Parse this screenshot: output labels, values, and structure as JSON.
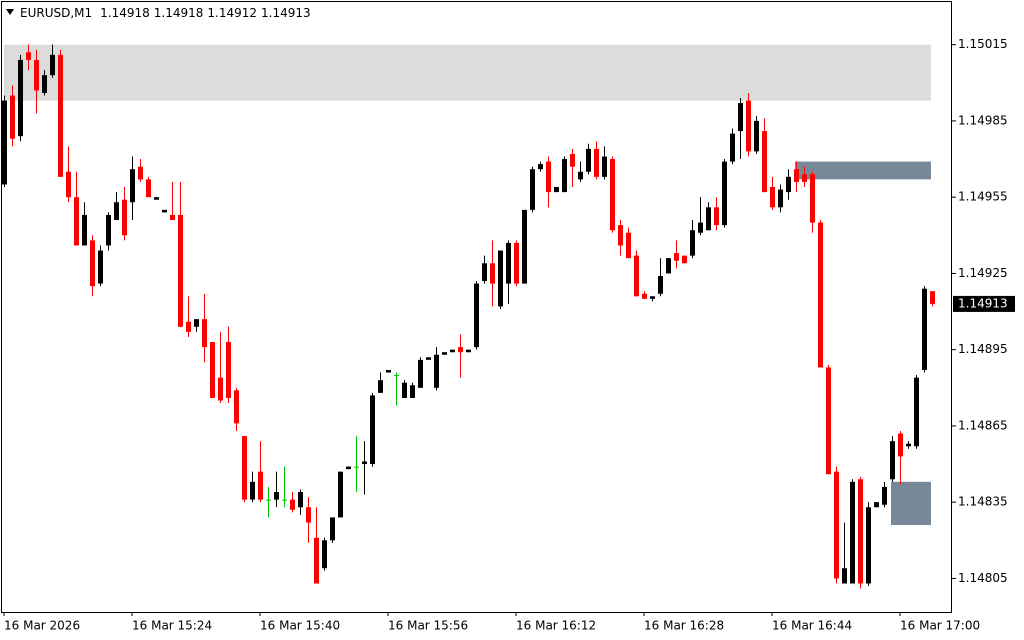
{
  "chart_data": {
    "type": "candlestick",
    "title": "EURUSD,M1",
    "categories": [
      "16 Mar 2026",
      null,
      null,
      null,
      null,
      null,
      null,
      null,
      null,
      null,
      null,
      null,
      null,
      null,
      null,
      null,
      "16 Mar 15:24",
      null,
      null,
      null,
      null,
      null,
      null,
      null,
      null,
      null,
      null,
      null,
      null,
      null,
      null,
      null,
      "16 Mar 15:40",
      null,
      null,
      null,
      null,
      null,
      null,
      null,
      null,
      null,
      null,
      null,
      null,
      null,
      null,
      null,
      "16 Mar 15:56",
      null,
      null,
      null,
      null,
      null,
      null,
      null,
      null,
      null,
      null,
      null,
      null,
      null,
      null,
      null,
      "16 Mar 16:12",
      null,
      null,
      null,
      null,
      null,
      null,
      null,
      null,
      null,
      null,
      null,
      null,
      null,
      null,
      null,
      "16 Mar 16:28",
      null,
      null,
      null,
      null,
      null,
      null,
      null,
      null,
      null,
      null,
      null,
      null,
      null,
      null,
      null,
      "16 Mar 16:44",
      null,
      null,
      null,
      null,
      null,
      null,
      null,
      null,
      null,
      null,
      null,
      null,
      null,
      null,
      null,
      "16 Mar 17:00",
      null,
      null,
      null,
      null
    ],
    "open": [
      1.1496,
      1.14995,
      1.14979,
      1.15012,
      1.15009,
      1.14996,
      1.15003,
      1.15011,
      1.14965,
      1.14955,
      1.14936,
      1.14938,
      1.14921,
      1.14936,
      1.14946,
      1.14954,
      1.14953,
      1.14967,
      1.14962,
      1.14954,
      1.14949,
      1.14948,
      1.14948,
      1.14906,
      1.14904,
      1.14907,
      1.14898,
      1.14884,
      1.14898,
      1.14879,
      1.14861,
      1.14836,
      1.14847,
      1.14836,
      1.14836,
      1.14836,
      1.14836,
      1.14833,
      1.14833,
      1.14821,
      1.14809,
      1.1482,
      1.14829,
      1.14848,
      1.14849,
      1.1485,
      1.1485,
      1.14878,
      1.14886,
      1.14885,
      1.14876,
      1.14876,
      1.1488,
      1.14891,
      1.1488,
      1.14893,
      1.14894,
      1.14896,
      1.14894,
      1.14896,
      1.14922,
      1.14929,
      1.14912,
      1.14921,
      1.14937,
      1.14921,
      1.1495,
      1.14966,
      1.14969,
      1.14957,
      1.14957,
      1.14972,
      1.14962,
      1.14965,
      1.14974,
      1.14963,
      1.1497,
      1.14944,
      1.14941,
      1.14932,
      1.14917,
      1.14915,
      1.14917,
      1.14925,
      1.14933,
      1.14932,
      1.14932,
      1.14941,
      1.14942,
      1.14951,
      1.14944,
      1.14969,
      1.14981,
      1.14993,
      1.14973,
      1.14981,
      1.14959,
      1.14951,
      1.14957,
      1.14966,
      1.14964,
      1.14964,
      1.14945,
      1.14888,
      1.14847,
      1.14803,
      1.14803,
      1.14844,
      1.14803,
      1.14833,
      1.14834,
      1.14844,
      1.14862,
      1.14857,
      1.14857,
      1.14887,
      1.14918
    ],
    "high": [
      1.14995,
      1.14999,
      1.15011,
      1.15015,
      1.15013,
      1.15005,
      1.15015,
      1.15013,
      1.14975,
      1.14965,
      1.14953,
      1.1494,
      1.14936,
      1.14949,
      1.14957,
      1.14959,
      1.14971,
      1.1497,
      1.14963,
      1.14955,
      1.1495,
      1.14961,
      1.14961,
      1.14916,
      1.14907,
      1.14917,
      1.14898,
      1.14902,
      1.14904,
      1.1488,
      1.14861,
      1.14847,
      1.14859,
      1.14841,
      1.14847,
      1.14849,
      1.14839,
      1.1484,
      1.14837,
      1.14833,
      1.14821,
      1.14829,
      1.14847,
      1.14849,
      1.14861,
      1.14859,
      1.14878,
      1.14886,
      1.14887,
      1.14886,
      1.14883,
      1.14882,
      1.14892,
      1.14892,
      1.14896,
      1.14894,
      1.14895,
      1.14901,
      1.14895,
      1.14922,
      1.14932,
      1.14938,
      1.14934,
      1.14938,
      1.14938,
      1.1495,
      1.14967,
      1.14969,
      1.14971,
      1.14959,
      1.14971,
      1.14974,
      1.14969,
      1.14976,
      1.14977,
      1.14975,
      1.14971,
      1.14946,
      1.14943,
      1.14934,
      1.14918,
      1.14916,
      1.14931,
      1.14931,
      1.14938,
      1.14932,
      1.14946,
      1.14955,
      1.14953,
      1.14955,
      1.1497,
      1.14982,
      1.14994,
      1.14996,
      1.14987,
      1.14986,
      1.14963,
      1.1496,
      1.14966,
      1.14969,
      1.14967,
      1.14965,
      1.14946,
      1.14889,
      1.14849,
      1.14827,
      1.14844,
      1.14845,
      1.14835,
      1.14835,
      1.14843,
      1.14861,
      1.14863,
      1.14859,
      1.14885,
      1.1492,
      1.14918
    ],
    "low": [
      1.14959,
      1.14975,
      1.14977,
      1.15005,
      1.14988,
      1.14995,
      1.15002,
      1.14963,
      1.14953,
      1.14936,
      1.14936,
      1.14916,
      1.1492,
      1.14934,
      1.14946,
      1.14938,
      1.14946,
      1.14961,
      1.14955,
      1.14954,
      1.14949,
      1.14946,
      1.14904,
      1.149,
      1.14902,
      1.1489,
      1.14876,
      1.14874,
      1.14874,
      1.14863,
      1.14835,
      1.14835,
      1.14835,
      1.14829,
      1.14833,
      1.14833,
      1.14831,
      1.1483,
      1.14819,
      1.14803,
      1.14808,
      1.14819,
      1.14829,
      1.14848,
      1.14839,
      1.14838,
      1.14849,
      1.14878,
      1.14886,
      1.14873,
      1.14876,
      1.14876,
      1.1488,
      1.14891,
      1.14879,
      1.14893,
      1.14894,
      1.14884,
      1.14894,
      1.14895,
      1.14921,
      1.14912,
      1.14911,
      1.14913,
      1.1492,
      1.14921,
      1.14949,
      1.14965,
      1.14951,
      1.14957,
      1.14957,
      1.14959,
      1.14961,
      1.14964,
      1.14962,
      1.14962,
      1.14941,
      1.14932,
      1.14931,
      1.14916,
      1.14915,
      1.14914,
      1.14916,
      1.14925,
      1.14927,
      1.14929,
      1.14931,
      1.1494,
      1.14942,
      1.14942,
      1.14943,
      1.14968,
      1.1497,
      1.14971,
      1.14972,
      1.14957,
      1.1495,
      1.14949,
      1.14954,
      1.14957,
      1.14959,
      1.14941,
      1.14888,
      1.14846,
      1.14803,
      1.14803,
      1.14803,
      1.14801,
      1.14802,
      1.14833,
      1.14833,
      1.14843,
      1.14842,
      1.14856,
      1.14856,
      1.14886,
      1.14912
    ],
    "close": [
      1.14993,
      1.14978,
      1.15009,
      1.15009,
      1.14997,
      1.15003,
      1.15011,
      1.14963,
      1.14955,
      1.14936,
      1.14948,
      1.1492,
      1.14934,
      1.14948,
      1.14953,
      1.1494,
      1.14966,
      1.14962,
      1.14955,
      1.14955,
      1.1495,
      1.14946,
      1.14904,
      1.14902,
      1.14907,
      1.14896,
      1.14876,
      1.14875,
      1.14876,
      1.14866,
      1.14836,
      1.14843,
      1.14836,
      1.14836,
      1.14839,
      1.14836,
      1.14832,
      1.14839,
      1.14827,
      1.14803,
      1.1482,
      1.14829,
      1.14847,
      1.14849,
      1.14849,
      1.14851,
      1.14877,
      1.14883,
      1.14887,
      1.14885,
      1.14882,
      1.14881,
      1.14891,
      1.14892,
      1.14893,
      1.14894,
      1.14895,
      1.14894,
      1.14895,
      1.14921,
      1.14929,
      1.14921,
      1.14934,
      1.14937,
      1.14921,
      1.1495,
      1.14966,
      1.14968,
      1.14957,
      1.14959,
      1.1497,
      1.14967,
      1.14965,
      1.14974,
      1.14963,
      1.14971,
      1.14942,
      1.14936,
      1.14931,
      1.14916,
      1.14915,
      1.14916,
      1.14924,
      1.14931,
      1.1493,
      1.14929,
      1.14942,
      1.14945,
      1.14951,
      1.14944,
      1.14969,
      1.1498,
      1.14992,
      1.14973,
      1.14985,
      1.14957,
      1.14951,
      1.14958,
      1.14963,
      1.14961,
      1.14961,
      1.14945,
      1.14888,
      1.14846,
      1.14805,
      1.14809,
      1.14843,
      1.14803,
      1.14833,
      1.14835,
      1.14841,
      1.14859,
      1.14853,
      1.14858,
      1.14884,
      1.14919,
      1.14913
    ],
    "up_color": "#000000",
    "down_color": "#ff0000",
    "doji_color": "#00c000",
    "zones": [
      {
        "from": 1.14993,
        "to": 1.15015,
        "color": "#dcdcdc"
      },
      {
        "from": 1.14962,
        "to": 1.14969,
        "color": "#778899"
      },
      {
        "from": 1.14826,
        "to": 1.14843,
        "color": "#778899"
      }
    ],
    "ylim": [
      1.14791,
      1.15031
    ],
    "yticks": [
      1.14805,
      1.14835,
      1.14865,
      1.14895,
      1.14925,
      1.14955,
      1.14985,
      1.15015
    ],
    "grid": false
  }
}
